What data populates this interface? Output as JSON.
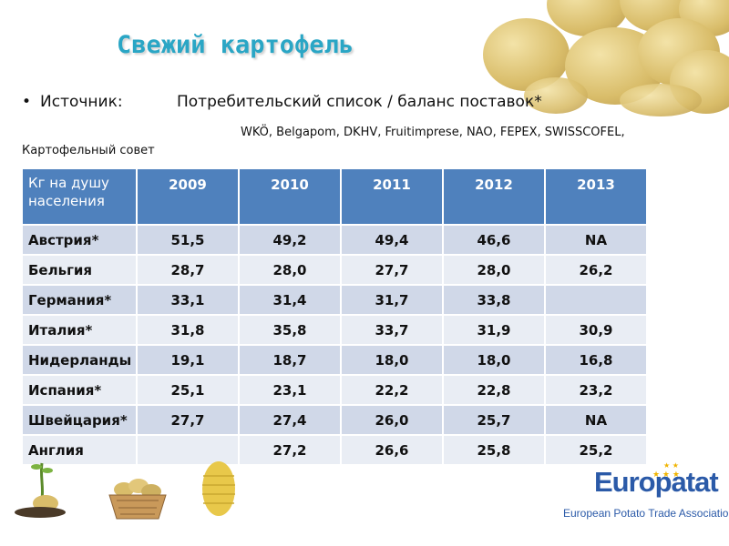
{
  "title": "Свежий картофель",
  "source": {
    "label": "Источник:",
    "text": "Потребительский список / баланс поставок*",
    "orgs": "WKÖ, Belgapom, DKHV, Fruitimprese, NAO, FEPEX, SWISSCOFEL,",
    "council": "Картофельный совет"
  },
  "table": {
    "header": [
      "Кг на душу населения",
      "2009",
      "2010",
      "2011",
      "2012",
      "2013"
    ],
    "rows": [
      [
        "Австрия*",
        "51,5",
        "49,2",
        "49,4",
        "46,6",
        "NA"
      ],
      [
        "Бельгия",
        "28,7",
        "28,0",
        "27,7",
        "28,0",
        "26,2"
      ],
      [
        "Германия*",
        "33,1",
        "31,4",
        "31,7",
        "33,8",
        ""
      ],
      [
        "Италия*",
        "31,8",
        "35,8",
        "33,7",
        "31,9",
        "30,9"
      ],
      [
        "Нидерланды",
        "19,1",
        "18,7",
        "18,0",
        "18,0",
        "16,8"
      ],
      [
        "Испания*",
        "25,1",
        "23,1",
        "22,2",
        "22,8",
        "23,2"
      ],
      [
        "Швейцария*",
        "27,7",
        "27,4",
        "26,0",
        "25,7",
        "NA"
      ],
      [
        "Англия",
        "",
        "27,2",
        "26,6",
        "25,8",
        "25,2"
      ]
    ]
  },
  "logo": {
    "name": "Europatat",
    "tagline": "European Potato Trade Association"
  },
  "colors": {
    "title": "#2aa6c5",
    "header_bg": "#4f81bd",
    "row_dark": "#d0d8e8",
    "row_light": "#e9edf4",
    "logo_blue": "#2b5aa8",
    "logo_stars": "#f0b400"
  },
  "icons": [
    "potato-pile-image",
    "potato-sprout-image",
    "potato-basket-image",
    "sliced-potato-image",
    "europatat-logo"
  ]
}
